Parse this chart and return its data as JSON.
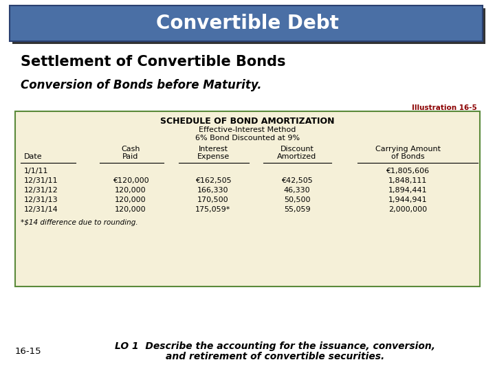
{
  "title": "Convertible Debt",
  "title_bg_color": "#4a6fa5",
  "title_text_color": "#ffffff",
  "subtitle1": "Settlement of Convertible Bonds",
  "subtitle2": "Conversion of Bonds before Maturity.",
  "illustration": "Illustration 16-5",
  "table_bg": "#f5f0d8",
  "table_border": "#5a8a3a",
  "table_header1": "SCHEDULE OF BOND AMORTIZATION",
  "table_header2": "Effective-Interest Method",
  "table_header3": "6% Bond Discounted at 9%",
  "col_headers_line1": [
    "",
    "Cash",
    "Interest",
    "Discount",
    "Carrying Amount"
  ],
  "col_headers_line2": [
    "Date",
    "Paid",
    "Expense",
    "Amortized",
    "of Bonds"
  ],
  "rows": [
    [
      "1/1/11",
      "",
      "",
      "",
      "€1,805,606"
    ],
    [
      "12/31/11",
      "€120,000",
      "€162,505",
      "€42,505",
      "1,848,111"
    ],
    [
      "12/31/12",
      "120,000",
      "166,330",
      "46,330",
      "1,894,441"
    ],
    [
      "12/31/13",
      "120,000",
      "170,500",
      "50,500",
      "1,944,941"
    ],
    [
      "12/31/14",
      "120,000",
      "175,059*",
      "55,059",
      "2,000,000"
    ]
  ],
  "footnote": "*$14 difference due to rounding.",
  "footer_left": "16-15",
  "footer_line1": "LO 1  Describe the accounting for the issuance, conversion,",
  "footer_line2": "and retirement of convertible securities.",
  "bg_color": "#ffffff",
  "shadow_color": "#333333",
  "illus_color": "#8B0000"
}
